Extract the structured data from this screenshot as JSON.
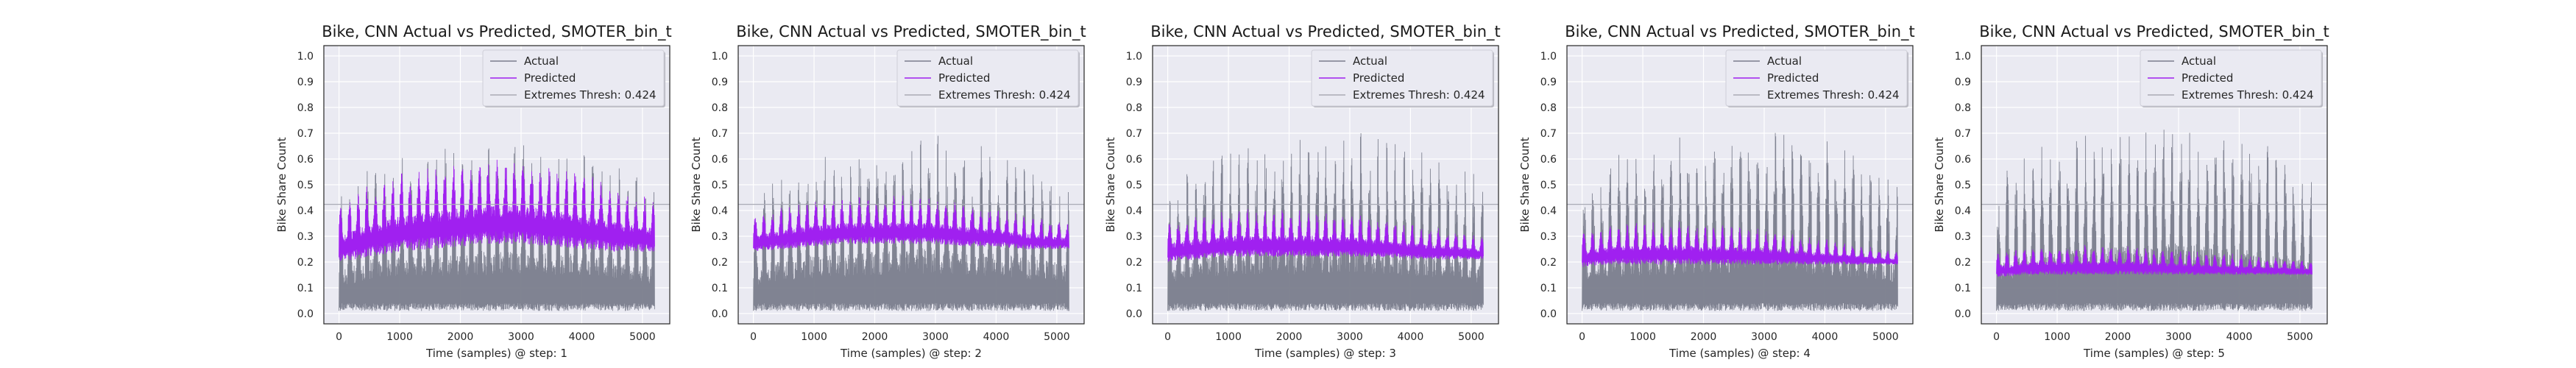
{
  "chart_data": [
    {
      "type": "line",
      "title": "Bike, CNN Actual vs Predicted, SMOTER_bin_t",
      "xlabel": "Time (samples) @ step: 1",
      "ylabel": "Bike Share Count",
      "xlim": [
        -250,
        5450
      ],
      "ylim": [
        -0.04,
        1.04
      ],
      "xticks": [
        0,
        1000,
        2000,
        3000,
        4000,
        5000
      ],
      "yticks": [
        0.0,
        0.1,
        0.2,
        0.3,
        0.4,
        0.5,
        0.6,
        0.7,
        0.8,
        0.9,
        1.0
      ],
      "grid": true,
      "legend_position": "top-right",
      "threshold": 0.424,
      "series": [
        {
          "name": "Actual",
          "color": "#7a7d8c",
          "x": [
            0,
            500,
            1000,
            1500,
            2000,
            2500,
            3000,
            3500,
            4000,
            4500,
            5000,
            5200
          ],
          "min": [
            0.01,
            0.01,
            0.01,
            0.01,
            0.01,
            0.01,
            0.01,
            0.01,
            0.01,
            0.01,
            0.01,
            0.01
          ],
          "max": [
            0.46,
            0.58,
            0.63,
            0.64,
            0.66,
            0.67,
            0.68,
            0.66,
            0.64,
            0.6,
            0.55,
            0.5
          ]
        },
        {
          "name": "Predicted",
          "color": "#a020f0",
          "x": [
            0,
            500,
            1000,
            1500,
            2000,
            2500,
            3000,
            3500,
            4000,
            4500,
            5000,
            5200
          ],
          "min": [
            0.2,
            0.22,
            0.24,
            0.25,
            0.26,
            0.27,
            0.27,
            0.26,
            0.25,
            0.24,
            0.24,
            0.24
          ],
          "max": [
            0.42,
            0.5,
            0.55,
            0.57,
            0.59,
            0.6,
            0.6,
            0.58,
            0.55,
            0.5,
            0.46,
            0.44
          ]
        },
        {
          "name": "Extremes Thresh: 0.424",
          "color": "#a9aab5",
          "y": 0.424
        }
      ]
    },
    {
      "type": "line",
      "title": "Bike, CNN Actual vs Predicted, SMOTER_bin_t",
      "xlabel": "Time (samples) @ step: 2",
      "ylabel": "Bike Share Count",
      "xlim": [
        -250,
        5450
      ],
      "ylim": [
        -0.04,
        1.04
      ],
      "xticks": [
        0,
        1000,
        2000,
        3000,
        4000,
        5000
      ],
      "yticks": [
        0.0,
        0.1,
        0.2,
        0.3,
        0.4,
        0.5,
        0.6,
        0.7,
        0.8,
        0.9,
        1.0
      ],
      "grid": true,
      "legend_position": "top-right",
      "threshold": 0.424,
      "series": [
        {
          "name": "Actual",
          "color": "#7a7d8c",
          "x": [
            0,
            500,
            1000,
            1500,
            2000,
            2500,
            3000,
            3500,
            4000,
            4500,
            5000,
            5200
          ],
          "min": [
            0.01,
            0.01,
            0.01,
            0.01,
            0.01,
            0.01,
            0.01,
            0.01,
            0.01,
            0.01,
            0.01,
            0.01
          ],
          "max": [
            0.45,
            0.58,
            0.62,
            0.64,
            0.67,
            0.69,
            0.7,
            0.67,
            0.65,
            0.6,
            0.55,
            0.5
          ]
        },
        {
          "name": "Predicted",
          "color": "#a020f0",
          "x": [
            0,
            500,
            1000,
            1500,
            2000,
            2500,
            3000,
            3500,
            4000,
            4500,
            5000,
            5200
          ],
          "min": [
            0.24,
            0.25,
            0.26,
            0.27,
            0.27,
            0.27,
            0.27,
            0.26,
            0.26,
            0.25,
            0.25,
            0.25
          ],
          "max": [
            0.38,
            0.42,
            0.44,
            0.45,
            0.46,
            0.46,
            0.45,
            0.43,
            0.41,
            0.38,
            0.36,
            0.35
          ]
        },
        {
          "name": "Extremes Thresh: 0.424",
          "color": "#a9aab5",
          "y": 0.424
        }
      ]
    },
    {
      "type": "line",
      "title": "Bike, CNN Actual vs Predicted, SMOTER_bin_t",
      "xlabel": "Time (samples) @ step: 3",
      "ylabel": "Bike Share Count",
      "xlim": [
        -250,
        5450
      ],
      "ylim": [
        -0.04,
        1.04
      ],
      "xticks": [
        0,
        1000,
        2000,
        3000,
        4000,
        5000
      ],
      "yticks": [
        0.0,
        0.1,
        0.2,
        0.3,
        0.4,
        0.5,
        0.6,
        0.7,
        0.8,
        0.9,
        1.0
      ],
      "grid": true,
      "legend_position": "top-right",
      "threshold": 0.424,
      "series": [
        {
          "name": "Actual",
          "color": "#7a7d8c",
          "x": [
            0,
            500,
            1000,
            1500,
            2000,
            2500,
            3000,
            3500,
            4000,
            4500,
            5000,
            5200
          ],
          "min": [
            0.01,
            0.01,
            0.01,
            0.01,
            0.01,
            0.01,
            0.01,
            0.01,
            0.01,
            0.01,
            0.01,
            0.01
          ],
          "max": [
            0.48,
            0.6,
            0.64,
            0.66,
            0.68,
            0.7,
            0.72,
            0.69,
            0.66,
            0.62,
            0.56,
            0.5
          ]
        },
        {
          "name": "Predicted",
          "color": "#a020f0",
          "x": [
            0,
            500,
            1000,
            1500,
            2000,
            2500,
            3000,
            3500,
            4000,
            4500,
            5000,
            5200
          ],
          "min": [
            0.2,
            0.21,
            0.22,
            0.22,
            0.22,
            0.22,
            0.22,
            0.22,
            0.21,
            0.21,
            0.21,
            0.21
          ],
          "max": [
            0.36,
            0.39,
            0.4,
            0.41,
            0.41,
            0.4,
            0.39,
            0.37,
            0.35,
            0.33,
            0.31,
            0.3
          ]
        },
        {
          "name": "Extremes Thresh: 0.424",
          "color": "#a9aab5",
          "y": 0.424
        }
      ]
    },
    {
      "type": "line",
      "title": "Bike, CNN Actual vs Predicted, SMOTER_bin_t",
      "xlabel": "Time (samples) @ step: 4",
      "ylabel": "Bike Share Count",
      "xlim": [
        -250,
        5450
      ],
      "ylim": [
        -0.04,
        1.04
      ],
      "xticks": [
        0,
        1000,
        2000,
        3000,
        4000,
        5000
      ],
      "yticks": [
        0.0,
        0.1,
        0.2,
        0.3,
        0.4,
        0.5,
        0.6,
        0.7,
        0.8,
        0.9,
        1.0
      ],
      "grid": true,
      "legend_position": "top-right",
      "threshold": 0.424,
      "series": [
        {
          "name": "Actual",
          "color": "#7a7d8c",
          "x": [
            0,
            500,
            1000,
            1500,
            2000,
            2500,
            3000,
            3500,
            4000,
            4500,
            5000,
            5200
          ],
          "min": [
            0.01,
            0.01,
            0.01,
            0.01,
            0.01,
            0.01,
            0.01,
            0.01,
            0.01,
            0.01,
            0.01,
            0.01
          ],
          "max": [
            0.5,
            0.62,
            0.66,
            0.68,
            0.7,
            0.72,
            0.74,
            0.71,
            0.68,
            0.63,
            0.57,
            0.52
          ]
        },
        {
          "name": "Predicted",
          "color": "#a020f0",
          "x": [
            0,
            500,
            1000,
            1500,
            2000,
            2500,
            3000,
            3500,
            4000,
            4500,
            5000,
            5200
          ],
          "min": [
            0.18,
            0.19,
            0.19,
            0.19,
            0.19,
            0.19,
            0.19,
            0.19,
            0.19,
            0.19,
            0.19,
            0.19
          ],
          "max": [
            0.32,
            0.35,
            0.36,
            0.36,
            0.35,
            0.34,
            0.33,
            0.31,
            0.29,
            0.27,
            0.25,
            0.24
          ]
        },
        {
          "name": "Extremes Thresh: 0.424",
          "color": "#a9aab5",
          "y": 0.424
        }
      ]
    },
    {
      "type": "line",
      "title": "Bike, CNN Actual vs Predicted, SMOTER_bin_t",
      "xlabel": "Time (samples) @ step: 5",
      "ylabel": "Bike Share Count",
      "xlim": [
        -250,
        5450
      ],
      "ylim": [
        -0.04,
        1.04
      ],
      "xticks": [
        0,
        1000,
        2000,
        3000,
        4000,
        5000
      ],
      "yticks": [
        0.0,
        0.1,
        0.2,
        0.3,
        0.4,
        0.5,
        0.6,
        0.7,
        0.8,
        0.9,
        1.0
      ],
      "grid": true,
      "legend_position": "top-right",
      "threshold": 0.424,
      "series": [
        {
          "name": "Actual",
          "color": "#7a7d8c",
          "x": [
            0,
            500,
            1000,
            1500,
            2000,
            2500,
            3000,
            3500,
            4000,
            4500,
            5000,
            5200
          ],
          "min": [
            0.01,
            0.01,
            0.01,
            0.01,
            0.01,
            0.01,
            0.01,
            0.01,
            0.01,
            0.01,
            0.01,
            0.01
          ],
          "max": [
            0.52,
            0.64,
            0.68,
            0.7,
            0.72,
            0.74,
            0.76,
            0.73,
            0.7,
            0.65,
            0.59,
            0.54
          ]
        },
        {
          "name": "Predicted",
          "color": "#a020f0",
          "x": [
            0,
            500,
            1000,
            1500,
            2000,
            2500,
            3000,
            3500,
            4000,
            4500,
            5000,
            5200
          ],
          "min": [
            0.14,
            0.15,
            0.15,
            0.15,
            0.15,
            0.15,
            0.15,
            0.15,
            0.15,
            0.15,
            0.15,
            0.15
          ],
          "max": [
            0.24,
            0.26,
            0.27,
            0.27,
            0.27,
            0.26,
            0.25,
            0.24,
            0.23,
            0.22,
            0.21,
            0.2
          ]
        },
        {
          "name": "Extremes Thresh: 0.424",
          "color": "#a9aab5",
          "y": 0.424
        }
      ]
    }
  ]
}
